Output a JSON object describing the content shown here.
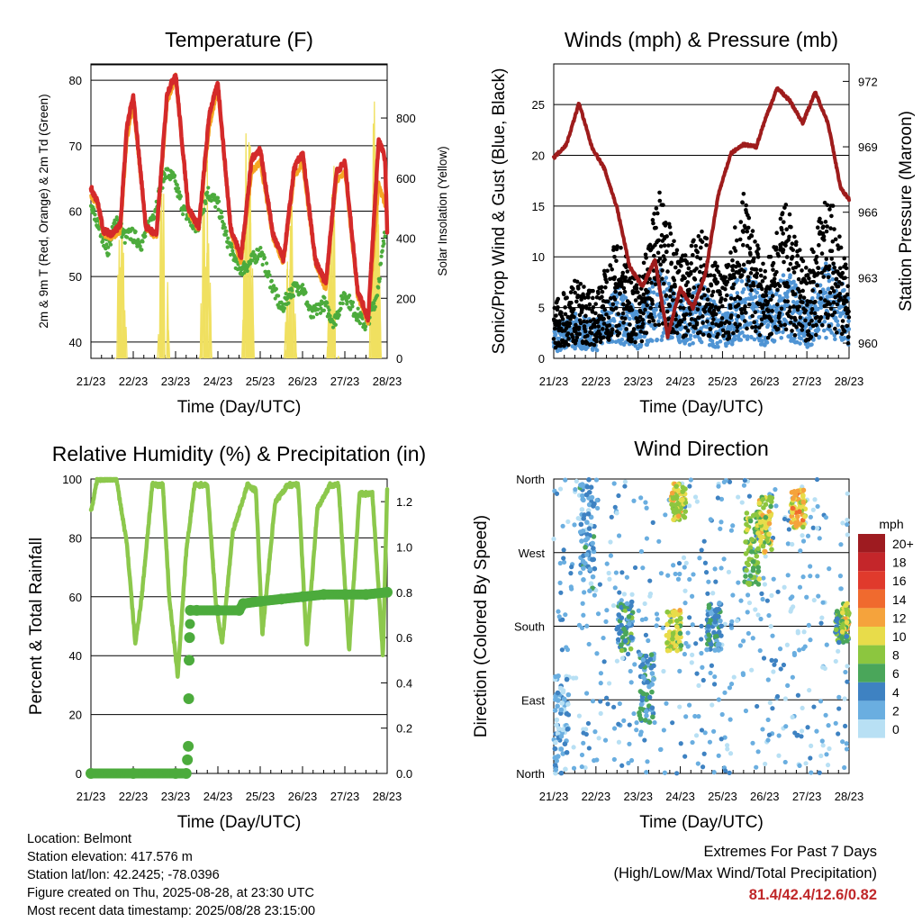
{
  "charts": [
    {
      "id": "temperature",
      "type": "line",
      "title": "Temperature (F)",
      "xlabel": "Time (Day/UTC)",
      "ylabel": "2m & 9m T (Red, Orange) & 2m Td (Green)",
      "ylabel_right": "Solar Insolation (Yellow)",
      "xticks": [
        "21/23",
        "22/23",
        "23/23",
        "24/23",
        "25/23",
        "26/23",
        "27/23",
        "28/23"
      ],
      "yticks": [
        "40",
        "50",
        "60",
        "70",
        "80"
      ],
      "yticks_right": [
        "0",
        "200",
        "400",
        "600",
        "800"
      ],
      "ylim": [
        37.5,
        82.5
      ],
      "ylim_right": [
        0,
        980
      ],
      "grid": true,
      "series": [
        {
          "color": "#f0e060",
          "axis": "right",
          "style": "spikes",
          "days": [
            [
              0.58,
              0.85,
              540
            ],
            [
              1.58,
              1.85,
              780
            ],
            [
              2.58,
              2.85,
              760
            ],
            [
              3.58,
              3.85,
              910
            ],
            [
              4.58,
              4.85,
              600
            ],
            [
              5.58,
              5.85,
              700
            ],
            [
              6.58,
              6.85,
              955
            ]
          ]
        },
        {
          "color": "#f5a623",
          "axis": "left",
          "x": [
            0,
            0.15,
            0.3,
            0.5,
            0.7,
            0.85,
            1.0,
            1.3,
            1.55,
            1.8,
            2.0,
            2.3,
            2.55,
            2.8,
            3.0,
            3.3,
            3.55,
            3.8,
            4.0,
            4.3,
            4.55,
            4.8,
            5.0,
            5.3,
            5.55,
            5.8,
            6.0,
            6.3,
            6.55,
            6.8,
            7.0
          ],
          "y": [
            62.5,
            61,
            56.5,
            56,
            57,
            71,
            76,
            57.5,
            56,
            76.5,
            80.5,
            60,
            57,
            73,
            78.5,
            57,
            52,
            66,
            67.5,
            56,
            52,
            65,
            67.5,
            52,
            48,
            64.5,
            66,
            47,
            43,
            64,
            60
          ]
        },
        {
          "color": "#d42a2a",
          "axis": "left",
          "x": [
            0,
            0.15,
            0.3,
            0.5,
            0.7,
            0.85,
            1.0,
            1.3,
            1.55,
            1.8,
            2.0,
            2.3,
            2.55,
            2.8,
            3.0,
            3.3,
            3.55,
            3.8,
            4.0,
            4.3,
            4.55,
            4.8,
            5.0,
            5.3,
            5.55,
            5.8,
            6.0,
            6.3,
            6.55,
            6.8,
            6.95,
            7.0
          ],
          "y": [
            63.5,
            61.5,
            57,
            56.5,
            58,
            73,
            77.5,
            57.5,
            56.5,
            78,
            81,
            60.5,
            57.5,
            75,
            79.5,
            57.5,
            53,
            68,
            69.5,
            56.5,
            52.5,
            66.5,
            69,
            52.5,
            49,
            66,
            67.5,
            48,
            43.5,
            71,
            68,
            57
          ]
        },
        {
          "color": "#4cab3c",
          "axis": "left",
          "x": [
            0,
            0.2,
            0.4,
            0.6,
            0.8,
            0.95,
            1.2,
            1.5,
            1.75,
            1.95,
            2.2,
            2.5,
            2.75,
            3.0,
            3.2,
            3.5,
            3.75,
            4.0,
            4.2,
            4.5,
            4.75,
            5.0,
            5.2,
            5.5,
            5.75,
            6.0,
            6.2,
            6.5,
            6.75,
            6.95
          ],
          "y": [
            60.5,
            57.5,
            54,
            59,
            56,
            56.5,
            55,
            60,
            66,
            65,
            60,
            57,
            63,
            61,
            56,
            51,
            52,
            54,
            50,
            45,
            48,
            48.5,
            44,
            46,
            43,
            47.5,
            45,
            42.5,
            47,
            56.5
          ]
        }
      ]
    },
    {
      "id": "winds",
      "type": "scatter",
      "title": "Winds (mph) & Pressure (mb)",
      "xlabel": "Time (Day/UTC)",
      "ylabel": "Sonic/Prop Wind & Gust (Blue, Black)",
      "ylabel_right": "Station Pressure (Maroon)",
      "xticks": [
        "21/23",
        "22/23",
        "23/23",
        "24/23",
        "25/23",
        "26/23",
        "27/23",
        "28/23"
      ],
      "yticks": [
        "0",
        "5",
        "10",
        "15",
        "20",
        "25"
      ],
      "yticks_right": [
        "960",
        "963",
        "966",
        "969",
        "972"
      ],
      "ylim": [
        0,
        29
      ],
      "ylim_right": [
        959.3,
        972.8
      ],
      "grid": true,
      "wind_envelope": {
        "x": [
          0,
          0.5,
          1.0,
          1.5,
          2.0,
          2.5,
          3.0,
          3.5,
          4.0,
          4.5,
          5.0,
          5.5,
          6.0,
          6.5,
          7.0
        ],
        "mean": [
          2,
          3,
          2.5,
          5,
          3,
          6,
          4,
          5,
          3,
          6.5,
          4,
          6,
          3.5,
          7,
          4
        ],
        "gust": [
          5,
          7,
          6,
          11,
          7,
          15,
          9,
          12,
          7,
          15,
          8,
          14,
          8,
          16,
          7
        ]
      },
      "pressure": {
        "color": "#9e1c1c",
        "x": [
          0,
          0.3,
          0.6,
          0.9,
          1.2,
          1.5,
          1.8,
          2.1,
          2.4,
          2.7,
          3.0,
          3.3,
          3.6,
          3.9,
          4.2,
          4.5,
          4.8,
          5.0,
          5.3,
          5.6,
          5.9,
          6.2,
          6.5,
          6.8,
          7.0
        ],
        "y": [
          968.5,
          969.1,
          971.0,
          969.0,
          968.0,
          966.2,
          963.5,
          962.6,
          963.8,
          960.3,
          962.5,
          961.6,
          963.2,
          966.8,
          968.7,
          969.1,
          969.0,
          970.2,
          971.7,
          971.1,
          970.1,
          971.5,
          970.1,
          967.1,
          966.6
        ]
      }
    },
    {
      "id": "humidity",
      "type": "line",
      "title": "Relative Humidity (%) & Precipitation (in)",
      "xlabel": "Time (Day/UTC)",
      "ylabel": "Percent & Total Rainfall",
      "xticks": [
        "21/23",
        "22/23",
        "23/23",
        "24/23",
        "25/23",
        "26/23",
        "27/23",
        "28/23"
      ],
      "yticks": [
        "0",
        "20",
        "40",
        "60",
        "80",
        "100"
      ],
      "yticks_right": [
        "0.0",
        "0.2",
        "0.4",
        "0.6",
        "0.8",
        "1.0",
        "1.2"
      ],
      "ylim": [
        0,
        100
      ],
      "ylim_right": [
        0,
        1.3
      ],
      "grid": true,
      "series": [
        {
          "color": "#8cc84c",
          "axis": "left",
          "x": [
            0,
            0.15,
            0.35,
            0.6,
            0.85,
            1.05,
            1.2,
            1.45,
            1.7,
            1.85,
            2.05,
            2.25,
            2.45,
            2.75,
            2.95,
            3.1,
            3.35,
            3.7,
            3.9,
            4.05,
            4.35,
            4.65,
            4.9,
            5.1,
            5.35,
            5.65,
            5.85,
            6.1,
            6.35,
            6.65,
            6.9,
            7.0
          ],
          "y": [
            89,
            100,
            100,
            100,
            78,
            44,
            60,
            98,
            98,
            60,
            33,
            75,
            98,
            98,
            58,
            44,
            82,
            98,
            96,
            47,
            92,
            98,
            98,
            43,
            90,
            98,
            98,
            42,
            95,
            95,
            40,
            96
          ]
        },
        {
          "color": "#4cab3c",
          "axis": "right",
          "style": "markers",
          "x": [
            0,
            1.0,
            2.0,
            2.25,
            2.28,
            2.3,
            2.31,
            2.32,
            2.33,
            2.35,
            2.5,
            3.0,
            3.5,
            3.6,
            4.0,
            4.5,
            5.0,
            5.5,
            6.0,
            6.5,
            7.0
          ],
          "y": [
            0,
            0,
            0,
            0,
            0.06,
            0.12,
            0.33,
            0.5,
            0.6,
            0.72,
            0.72,
            0.72,
            0.72,
            0.75,
            0.76,
            0.77,
            0.78,
            0.79,
            0.79,
            0.79,
            0.8
          ]
        }
      ]
    },
    {
      "id": "direction",
      "type": "scatter",
      "title": "Wind Direction",
      "xlabel": "Time (Day/UTC)",
      "ylabel": "Direction (Colored By Speed)",
      "xticks": [
        "21/23",
        "22/23",
        "23/23",
        "24/23",
        "25/23",
        "26/23",
        "27/23",
        "28/23"
      ],
      "yticks": [
        "North",
        "East",
        "South",
        "West",
        "North"
      ],
      "ylim": [
        0,
        360
      ],
      "grid": true,
      "legend": {
        "title": "mph",
        "position": "right",
        "labels": [
          "20+",
          "18",
          "16",
          "14",
          "12",
          "10",
          "8",
          "6",
          "4",
          "2",
          "0"
        ],
        "colors": [
          "#9e1b20",
          "#c4262a",
          "#e03a2c",
          "#f06a2e",
          "#f5a33c",
          "#e8dc4a",
          "#8cc63f",
          "#4aa65a",
          "#3e82c2",
          "#6aaee0",
          "#b8e0f4"
        ]
      },
      "clusters": [
        {
          "day": 0.2,
          "dir": [
            0,
            120
          ],
          "spd": 2
        },
        {
          "day": 0.8,
          "dir": [
            220,
            360
          ],
          "spd": 3
        },
        {
          "day": 1.7,
          "dir": [
            150,
            210
          ],
          "spd": 5
        },
        {
          "day": 2.2,
          "dir": [
            60,
            150
          ],
          "spd": 4
        },
        {
          "day": 2.85,
          "dir": [
            150,
            200
          ],
          "spd": 9
        },
        {
          "day": 2.95,
          "dir": [
            310,
            355
          ],
          "spd": 9
        },
        {
          "day": 3.8,
          "dir": [
            150,
            210
          ],
          "spd": 4
        },
        {
          "day": 4.7,
          "dir": [
            230,
            320
          ],
          "spd": 7
        },
        {
          "day": 5.0,
          "dir": [
            270,
            340
          ],
          "spd": 9
        },
        {
          "day": 5.8,
          "dir": [
            300,
            350
          ],
          "spd": 11
        },
        {
          "day": 6.85,
          "dir": [
            160,
            200
          ],
          "spd": 6
        },
        {
          "day": 7.0,
          "dir": [
            170,
            210
          ],
          "spd": 9
        }
      ]
    }
  ],
  "footer": {
    "location": "Location: Belmont",
    "elevation": "Station elevation: 417.576 m",
    "latlon": "Station lat/lon: 42.2425; -78.0396",
    "created": "Figure created on Thu, 2025-08-28, at 23:30 UTC",
    "recent": "Most recent data timestamp: 2025/08/28 23:15:00"
  },
  "extremes": {
    "line1": "Extremes For Past 7 Days",
    "line2": "(High/Low/Max Wind/Total Precipitation)",
    "value": "81.4/42.4/12.6/0.82",
    "value_color": "#c0282a"
  }
}
